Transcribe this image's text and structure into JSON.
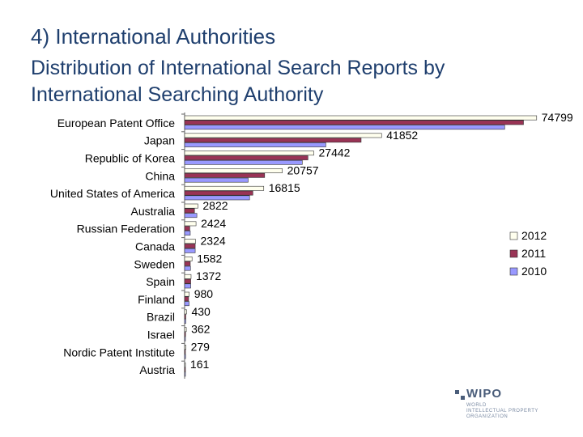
{
  "slide": {
    "title": "4)  International Authorities",
    "subtitle": "Distribution of International Search Reports by International Searching Authority"
  },
  "logo": {
    "name": "WIPO",
    "lines": [
      "WORLD",
      "INTELLECTUAL PROPERTY",
      "ORGANIZATION"
    ],
    "color": "#4a5d7a"
  },
  "chart_data": {
    "type": "bar",
    "orientation": "horizontal",
    "categories": [
      "European Patent Office",
      "Japan",
      "Republic of Korea",
      "China",
      "United States of America",
      "Australia",
      "Russian Federation",
      "Canada",
      "Sweden",
      "Spain",
      "Finland",
      "Brazil",
      "Israel",
      "Nordic Patent Institute",
      "Austria"
    ],
    "series": [
      {
        "name": "2012",
        "color": "#ffffee",
        "values": [
          74799,
          41852,
          27442,
          20757,
          16815,
          2822,
          2424,
          2324,
          1582,
          1372,
          980,
          430,
          362,
          279,
          161
        ]
      },
      {
        "name": "2011",
        "color": "#993355",
        "values": [
          72000,
          37500,
          26200,
          17000,
          14500,
          2100,
          1100,
          2250,
          1200,
          1300,
          850,
          250,
          200,
          150,
          100
        ]
      },
      {
        "name": "2010",
        "color": "#9999ff",
        "values": [
          68000,
          30000,
          25000,
          13500,
          13800,
          2600,
          1200,
          2250,
          1250,
          1300,
          950,
          250,
          150,
          200,
          100
        ]
      }
    ],
    "data_labels_series": "2012",
    "xlim": [
      0,
      80000
    ],
    "grid": false,
    "legend": "right"
  }
}
